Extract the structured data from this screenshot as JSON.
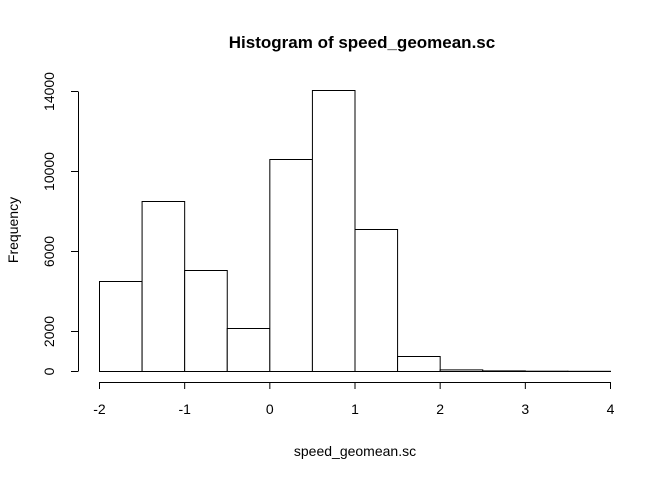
{
  "chart_data": {
    "type": "bar",
    "title": "Histogram of speed_geomean.sc",
    "xlabel": "speed_geomean.sc",
    "ylabel": "Frequency",
    "bin_edges": [
      -2,
      -1.5,
      -1,
      -0.5,
      0,
      0.5,
      1,
      1.5,
      2,
      2.5,
      3,
      3.5,
      4
    ],
    "values": [
      4500,
      8500,
      5050,
      2150,
      10600,
      14050,
      7100,
      750,
      80,
      30,
      15,
      10
    ],
    "xlim": [
      -2,
      4
    ],
    "ylim": [
      0,
      14050
    ],
    "x_ticks": [
      "-2",
      "-1",
      "0",
      "1",
      "2",
      "3",
      "4"
    ],
    "y_ticks": [
      "0",
      "2000",
      "6000",
      "10000",
      "14000"
    ],
    "bar_fill": "#ffffff",
    "bar_stroke": "#000000",
    "grid": false,
    "legend": "none"
  }
}
